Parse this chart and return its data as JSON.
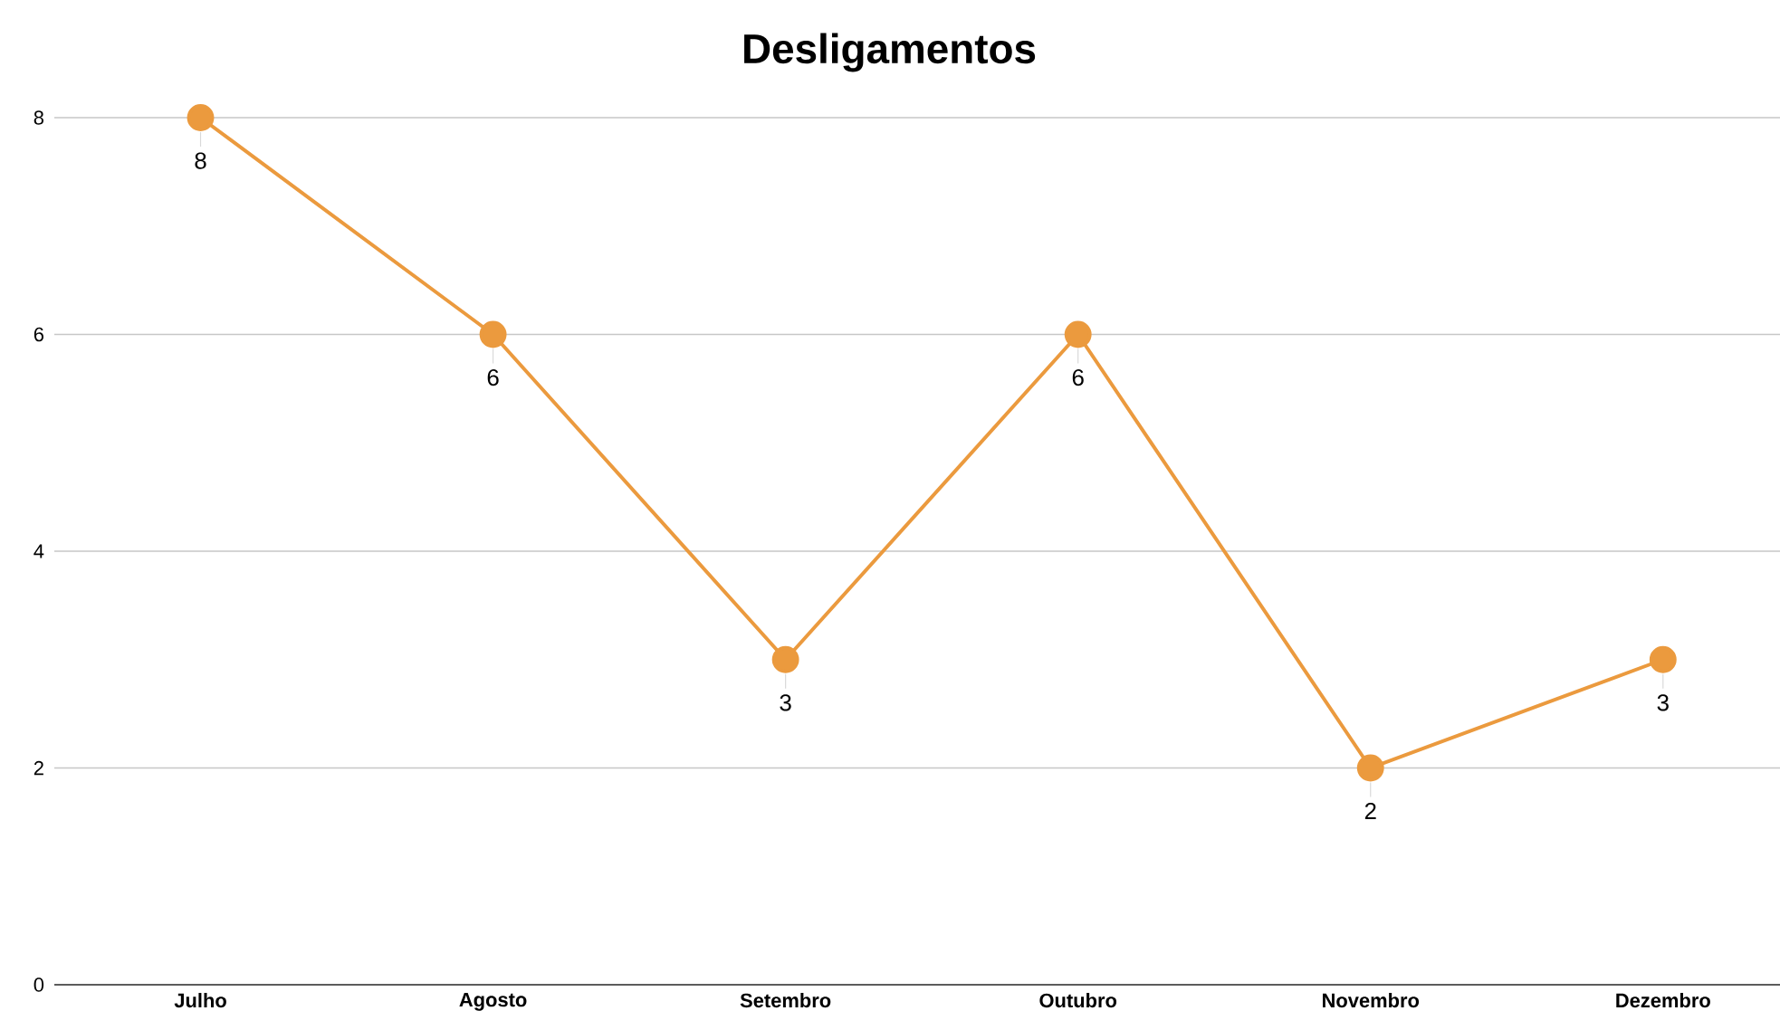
{
  "chart_data": {
    "type": "line",
    "title": "Desligamentos",
    "categories": [
      "Julho",
      "Agosto",
      "Setembro",
      "Outubro",
      "Novembro",
      "Dezembro"
    ],
    "series": [
      {
        "color": "#eb9a3e",
        "values": [
          8,
          6,
          3,
          6,
          2,
          3
        ]
      }
    ],
    "ylim": [
      0,
      8
    ],
    "yticks": [
      0,
      2,
      4,
      6,
      8
    ],
    "grid": "y",
    "marker": "circle",
    "line_style": "solid",
    "data_labels": true
  }
}
